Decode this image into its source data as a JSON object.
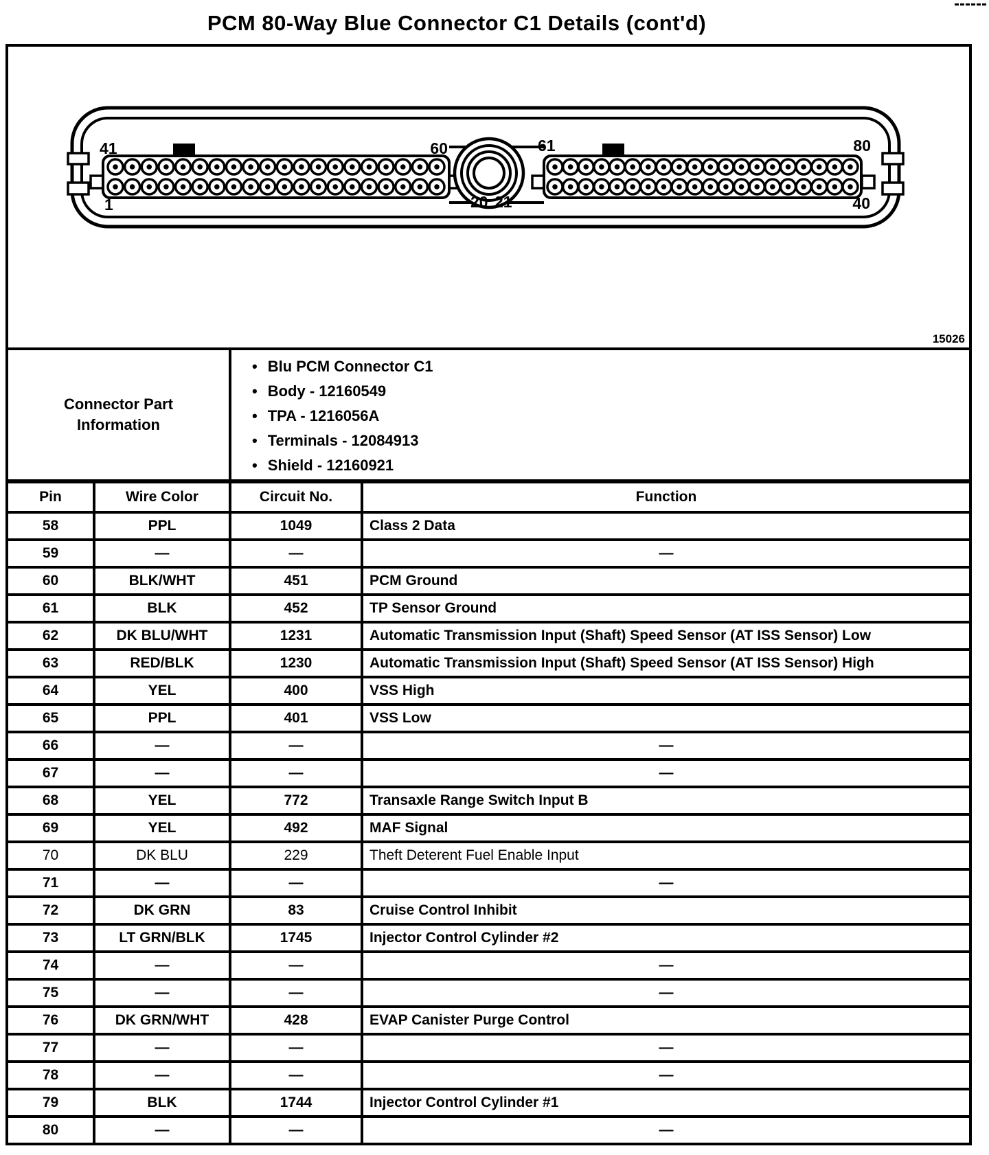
{
  "title": "PCM 80-Way Blue Connector C1 Details (cont'd)",
  "figure_number": "15026",
  "diagram": {
    "left_block": {
      "top_left": "41",
      "top_right": "60",
      "bottom_left": "1",
      "bottom_right": "20"
    },
    "right_block": {
      "top_left": "61",
      "top_right": "80",
      "bottom_left": "21",
      "bottom_right": "40"
    }
  },
  "part_info": {
    "label_line1": "Connector Part",
    "label_line2": "Information",
    "bullets": [
      "Blu PCM Connector C1",
      "Body - 12160549",
      "TPA - 1216056A",
      "Terminals - 12084913",
      "Shield - 12160921"
    ]
  },
  "pin_table": {
    "headers": [
      "Pin",
      "Wire Color",
      "Circuit No.",
      "Function"
    ],
    "empty_marker": "—",
    "rows": [
      {
        "pin": "58",
        "wire_color": "PPL",
        "circuit_no": "1049",
        "function": "Class 2 Data"
      },
      {
        "pin": "59",
        "wire_color": "—",
        "circuit_no": "—",
        "function": "—"
      },
      {
        "pin": "60",
        "wire_color": "BLK/WHT",
        "circuit_no": "451",
        "function": "PCM Ground"
      },
      {
        "pin": "61",
        "wire_color": "BLK",
        "circuit_no": "452",
        "function": "TP Sensor Ground"
      },
      {
        "pin": "62",
        "wire_color": "DK BLU/WHT",
        "circuit_no": "1231",
        "function": "Automatic Transmission Input (Shaft) Speed Sensor (AT ISS Sensor) Low"
      },
      {
        "pin": "63",
        "wire_color": "RED/BLK",
        "circuit_no": "1230",
        "function": "Automatic Transmission Input (Shaft) Speed Sensor (AT ISS Sensor) High"
      },
      {
        "pin": "64",
        "wire_color": "YEL",
        "circuit_no": "400",
        "function": "VSS High"
      },
      {
        "pin": "65",
        "wire_color": "PPL",
        "circuit_no": "401",
        "function": "VSS Low"
      },
      {
        "pin": "66",
        "wire_color": "—",
        "circuit_no": "—",
        "function": "—"
      },
      {
        "pin": "67",
        "wire_color": "—",
        "circuit_no": "—",
        "function": "—"
      },
      {
        "pin": "68",
        "wire_color": "YEL",
        "circuit_no": "772",
        "function": "Transaxle Range Switch Input B"
      },
      {
        "pin": "69",
        "wire_color": "YEL",
        "circuit_no": "492",
        "function": "MAF Signal"
      },
      {
        "pin": "70",
        "wire_color": "DK BLU",
        "circuit_no": "229",
        "function": "Theft Deterent Fuel Enable Input",
        "light": true
      },
      {
        "pin": "71",
        "wire_color": "—",
        "circuit_no": "—",
        "function": "—"
      },
      {
        "pin": "72",
        "wire_color": "DK GRN",
        "circuit_no": "83",
        "function": "Cruise Control Inhibit"
      },
      {
        "pin": "73",
        "wire_color": "LT GRN/BLK",
        "circuit_no": "1745",
        "function": "Injector Control Cylinder #2"
      },
      {
        "pin": "74",
        "wire_color": "—",
        "circuit_no": "—",
        "function": "—"
      },
      {
        "pin": "75",
        "wire_color": "—",
        "circuit_no": "—",
        "function": "—"
      },
      {
        "pin": "76",
        "wire_color": "DK GRN/WHT",
        "circuit_no": "428",
        "function": "EVAP Canister Purge Control"
      },
      {
        "pin": "77",
        "wire_color": "—",
        "circuit_no": "—",
        "function": "—"
      },
      {
        "pin": "78",
        "wire_color": "—",
        "circuit_no": "—",
        "function": "—"
      },
      {
        "pin": "79",
        "wire_color": "BLK",
        "circuit_no": "1744",
        "function": "Injector Control Cylinder #1"
      },
      {
        "pin": "80",
        "wire_color": "—",
        "circuit_no": "—",
        "function": "—"
      }
    ]
  }
}
